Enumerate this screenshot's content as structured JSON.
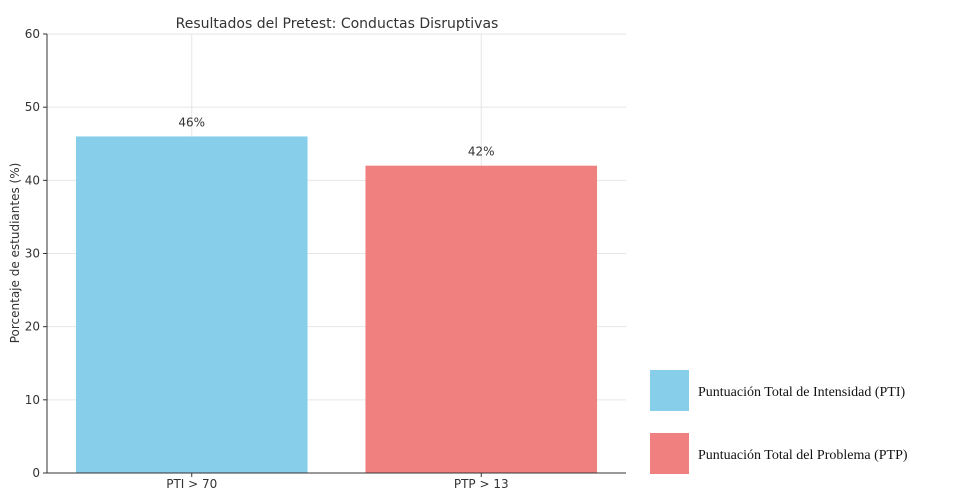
{
  "chart_data": {
    "type": "bar",
    "title": "Resultados del Pretest: Conductas Disruptivas",
    "xlabel": "",
    "ylabel": "Porcentaje de estudiantes (%)",
    "ylim": [
      0,
      60
    ],
    "yticks": [
      0,
      10,
      20,
      30,
      40,
      50,
      60
    ],
    "categories": [
      "PTI > 70",
      "PTP > 13"
    ],
    "values": [
      46,
      42
    ],
    "data_labels": [
      "46%",
      "42%"
    ],
    "colors": [
      "#87ceeb",
      "#f08080"
    ],
    "grid": true,
    "legend_position": "bottom-right",
    "legend": [
      {
        "label": "Puntuación Total de Intensidad (PTI)",
        "color": "#87ceeb"
      },
      {
        "label": "Puntuación Total del Problema (PTP)",
        "color": "#f08080"
      }
    ]
  }
}
